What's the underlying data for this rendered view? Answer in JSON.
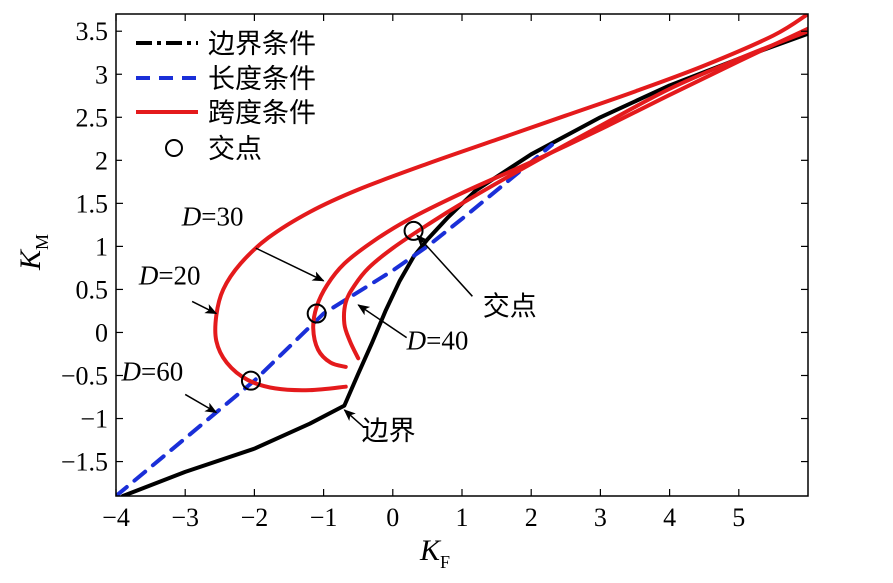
{
  "chart_data": {
    "type": "line",
    "xlabel": "K",
    "xlabel_sub": "F",
    "ylabel": "K",
    "ylabel_sub": "M",
    "xlim": [
      -4,
      6
    ],
    "ylim": [
      -1.9,
      3.7
    ],
    "xticks": [
      -4,
      -3,
      -2,
      -1,
      0,
      1,
      2,
      3,
      4,
      5
    ],
    "xtick_labels": [
      "−4",
      "−3",
      "−2",
      "−1",
      "0",
      "1",
      "2",
      "3",
      "4",
      "5"
    ],
    "yticks": [
      -1.5,
      -1,
      -0.5,
      0,
      0.5,
      1,
      1.5,
      2,
      2.5,
      3,
      3.5
    ],
    "ytick_labels": [
      "−1.5",
      "−1",
      "−0.5",
      "0",
      "0.5",
      "1",
      "1.5",
      "2",
      "2.5",
      "3",
      "3.5"
    ],
    "grid": false,
    "legend_position": "top-left",
    "legend": [
      {
        "label": "边界条件",
        "style": "dash-dot",
        "color": "#000000"
      },
      {
        "label": "长度条件",
        "style": "dashed",
        "color": "#1a2fd8"
      },
      {
        "label": "跨度条件",
        "style": "solid",
        "color": "#e41a1c"
      },
      {
        "label": "交点",
        "style": "circle-marker",
        "color": "#000000"
      }
    ],
    "series": [
      {
        "key": "boundary",
        "color": "#000000",
        "dash": "none",
        "x": [
          -3.9,
          -3.0,
          -2.0,
          -1.2,
          -0.7,
          -0.5,
          -0.3,
          -0.1,
          0.1,
          0.3,
          0.5,
          0.8,
          1.2,
          2.0,
          3.0,
          4.0,
          5.0,
          6.0
        ],
        "y": [
          -1.9,
          -1.62,
          -1.35,
          -1.06,
          -0.85,
          -0.48,
          -0.12,
          0.26,
          0.6,
          0.88,
          1.08,
          1.34,
          1.65,
          2.07,
          2.5,
          2.87,
          3.18,
          3.47
        ]
      },
      {
        "key": "length",
        "color": "#1a2fd8",
        "dash": "14,10",
        "x": [
          -4.0,
          -2.0,
          -1.0,
          0.0,
          0.5,
          1.0,
          1.5,
          2.0,
          2.3
        ],
        "y": [
          -1.9,
          -0.56,
          0.22,
          0.72,
          1.0,
          1.32,
          1.65,
          1.98,
          2.18
        ]
      },
      {
        "key": "span-D20",
        "color": "#e41a1c",
        "dash": "none",
        "x": [
          -0.68,
          -1.2,
          -1.7,
          -2.1,
          -2.4,
          -2.55,
          -2.55,
          -2.45,
          -2.2,
          -1.8,
          -1.2,
          -0.5,
          0.5,
          1.5,
          2.5,
          3.5,
          4.5,
          5.5,
          6.0
        ],
        "y": [
          -0.63,
          -0.67,
          -0.65,
          -0.55,
          -0.35,
          -0.1,
          0.2,
          0.5,
          0.8,
          1.1,
          1.4,
          1.66,
          1.96,
          2.24,
          2.52,
          2.8,
          3.1,
          3.45,
          3.7
        ]
      },
      {
        "key": "span-D30",
        "color": "#e41a1c",
        "dash": "none",
        "x": [
          -0.68,
          -0.9,
          -1.08,
          -1.15,
          -1.1,
          -0.95,
          -0.7,
          -0.3,
          0.2,
          1.0,
          2.0,
          3.0,
          4.0,
          5.0,
          6.0
        ],
        "y": [
          -0.4,
          -0.35,
          -0.2,
          0.05,
          0.3,
          0.55,
          0.8,
          1.05,
          1.3,
          1.62,
          1.98,
          2.36,
          2.76,
          3.15,
          3.53
        ]
      },
      {
        "key": "span-D40",
        "color": "#e41a1c",
        "dash": "none",
        "x": [
          -0.5,
          -0.62,
          -0.7,
          -0.68,
          -0.55,
          -0.35,
          0.0,
          0.5,
          1.0,
          2.0,
          3.0,
          4.0,
          5.0,
          6.0
        ],
        "y": [
          -0.3,
          -0.1,
          0.1,
          0.35,
          0.55,
          0.75,
          0.98,
          1.25,
          1.5,
          1.96,
          2.4,
          2.83,
          3.18,
          3.5
        ]
      }
    ],
    "intersections": [
      {
        "x": -2.05,
        "y": -0.56
      },
      {
        "x": -1.1,
        "y": 0.22
      },
      {
        "x": 0.3,
        "y": 1.18
      }
    ],
    "annotations": [
      {
        "key": "d30",
        "prefix": "D",
        "text": "=30",
        "label_x": -3.05,
        "label_y": 1.24,
        "arrow_from": [
          -1.98,
          0.98
        ],
        "arrow_to": [
          -1.0,
          0.6
        ]
      },
      {
        "key": "d20",
        "prefix": "D",
        "text": "=20",
        "label_x": -3.67,
        "label_y": 0.56,
        "arrow_from": [
          -2.9,
          0.36
        ],
        "arrow_to": [
          -2.55,
          0.22
        ]
      },
      {
        "key": "d60",
        "prefix": "D",
        "text": "=60",
        "label_x": -3.92,
        "label_y": -0.56,
        "arrow_from": [
          -3.0,
          -0.72
        ],
        "arrow_to": [
          -2.55,
          -0.93
        ]
      },
      {
        "key": "d40",
        "prefix": "D",
        "text": "=40",
        "label_x": 0.2,
        "label_y": -0.2,
        "arrow_from": [
          0.2,
          -0.06
        ],
        "arrow_to": [
          -0.5,
          0.32
        ]
      },
      {
        "key": "jiaodian",
        "prefix": "",
        "text": "交点",
        "label_x": 1.3,
        "label_y": 0.2,
        "arrow_from": [
          1.15,
          0.42
        ],
        "arrow_to": [
          0.35,
          1.13
        ]
      },
      {
        "key": "bianjie",
        "prefix": "",
        "text": "边界",
        "label_x": -0.45,
        "label_y": -1.25,
        "arrow_from": [
          -0.42,
          -1.1
        ],
        "arrow_to": [
          -0.7,
          -0.9
        ]
      }
    ]
  }
}
